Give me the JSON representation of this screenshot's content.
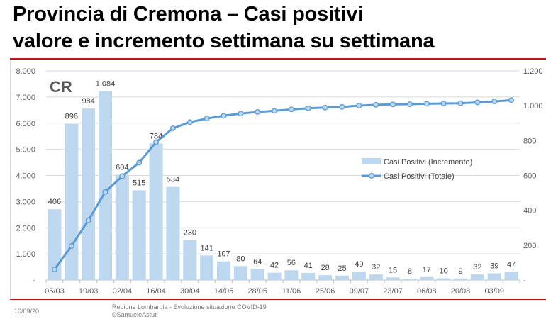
{
  "title_line1": "Provincia di Cremona – Casi positivi",
  "title_line2": "valore e incremento settimana su settimana",
  "footer": {
    "date": "10/09/20",
    "source": "Regione Lombardia - Evoluzione situazione COVID-19",
    "author": "©SamueleAstuti"
  },
  "colors": {
    "bar": "#bdd7ee",
    "line": "#5b9bd5",
    "accent": "#c0161c"
  },
  "chart_data": {
    "type": "bar+line",
    "badge": "CR",
    "x_tick_labels": [
      "05/03",
      "19/03",
      "02/04",
      "16/04",
      "30/04",
      "14/05",
      "28/05",
      "11/06",
      "25/06",
      "09/07",
      "23/07",
      "06/08",
      "20/08",
      "03/09"
    ],
    "left_axis": {
      "range": [
        0,
        8000
      ],
      "ticks": [
        "-",
        "1.000",
        "2.000",
        "3.000",
        "4.000",
        "5.000",
        "6.000",
        "7.000",
        "8.000"
      ]
    },
    "right_axis": {
      "range": [
        0,
        1200
      ],
      "ticks": [
        "-",
        "200",
        "400",
        "600",
        "800",
        "1.000",
        "1.200"
      ]
    },
    "legend": {
      "position": "center-right",
      "entries": [
        "Casi Positivi (Incremento)",
        "Casi Positivi (Totale)"
      ]
    },
    "series": [
      {
        "name": "Casi Positivi (Incremento)",
        "type": "bar",
        "axis": "right",
        "values": [
          406,
          896,
          984,
          1084,
          604,
          515,
          784,
          534,
          230,
          141,
          107,
          80,
          64,
          42,
          56,
          41,
          28,
          25,
          49,
          32,
          15,
          8,
          17,
          10,
          9,
          32,
          39,
          47
        ],
        "labels": [
          "406",
          "896",
          "984",
          "1.084",
          "604",
          "515",
          "784",
          "534",
          "230",
          "141",
          "107",
          "80",
          "64",
          "42",
          "56",
          "41",
          "28",
          "25",
          "49",
          "32",
          "15",
          "8",
          "17",
          "10",
          "9",
          "32",
          "39",
          "47"
        ]
      },
      {
        "name": "Casi Positivi (Totale)",
        "type": "line",
        "axis": "left",
        "values": [
          406,
          1302,
          2286,
          3370,
          3974,
          4489,
          5273,
          5807,
          6037,
          6178,
          6285,
          6365,
          6429,
          6471,
          6527,
          6568,
          6596,
          6621,
          6670,
          6702,
          6717,
          6725,
          6742,
          6752,
          6761,
          6793,
          6832,
          6879
        ]
      }
    ],
    "grid": true
  }
}
